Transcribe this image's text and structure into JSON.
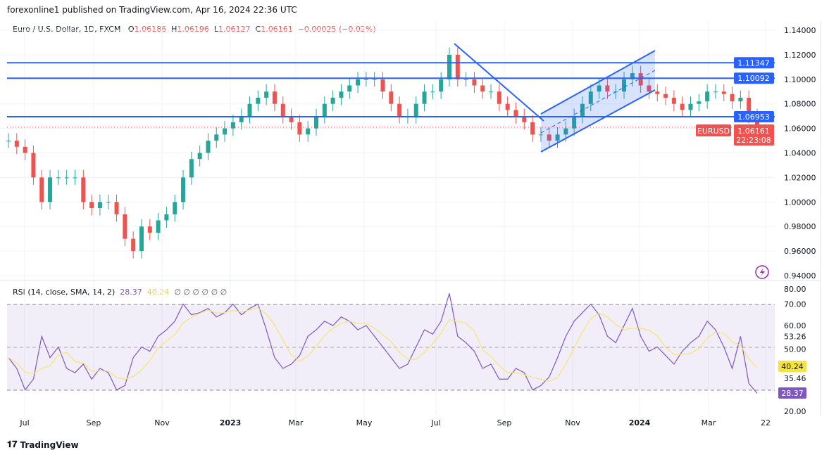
{
  "header": "forexonline1 published on TradingView.com, Apr 16, 2024 22:36 UTC",
  "legend": {
    "symbol": "Euro / U.S. Dollar, 1D, FXCM",
    "o_label": "O",
    "o": "1.06186",
    "h_label": "H",
    "h": "1.06196",
    "l_label": "L",
    "l": "1.06127",
    "c_label": "C",
    "c": "1.06161",
    "change": "−0.00025 (−0.02%)"
  },
  "rsi_legend": {
    "title": "RSI (14, close, SMA, 14, 2)",
    "rsi": "28.37",
    "sma": "40.24",
    "empty": "∅ ∅ ∅ ∅ ∅ ∅"
  },
  "branding": "TradingView",
  "colors": {
    "up": "#26a69a",
    "down": "#ef5350",
    "level": "#2962ff",
    "rsi": "#7e57c2",
    "sma": "#f7e470"
  },
  "chart_data": {
    "type": "candlestick",
    "title": "Euro / U.S. Dollar, 1D, FXCM",
    "ylim": [
      0.94,
      1.14
    ],
    "price_ticks": [
      "1.14000",
      "1.12000",
      "1.10000",
      "1.08000",
      "1.06000",
      "1.04000",
      "1.02000",
      "1.00000",
      "0.98000",
      "0.96000",
      "0.94000"
    ],
    "time_ticks": [
      "Jul",
      "Sep",
      "Nov",
      "2023",
      "Mar",
      "May",
      "Jul",
      "Sep",
      "Nov",
      "2024",
      "Mar",
      "22"
    ],
    "closes": [
      1.05,
      1.045,
      1.04,
      1.02,
      1.0,
      1.02,
      1.02,
      1.02,
      1.02,
      1.0,
      0.995,
      1.0,
      1.0,
      0.99,
      0.97,
      0.96,
      0.98,
      0.975,
      0.985,
      0.99,
      1.0,
      1.02,
      1.035,
      1.04,
      1.05,
      1.055,
      1.06,
      1.065,
      1.07,
      1.08,
      1.085,
      1.09,
      1.08,
      1.07,
      1.065,
      1.055,
      1.06,
      1.07,
      1.08,
      1.085,
      1.09,
      1.095,
      1.1,
      1.1,
      1.1,
      1.09,
      1.08,
      1.07,
      1.07,
      1.08,
      1.09,
      1.09,
      1.1,
      1.12,
      1.1,
      1.1,
      1.095,
      1.09,
      1.09,
      1.08,
      1.075,
      1.07,
      1.065,
      1.055,
      1.055,
      1.05,
      1.055,
      1.06,
      1.07,
      1.08,
      1.09,
      1.095,
      1.09,
      1.09,
      1.1,
      1.105,
      1.095,
      1.09,
      1.088,
      1.085,
      1.08,
      1.075,
      1.08,
      1.082,
      1.09,
      1.09,
      1.088,
      1.082,
      1.085,
      1.07,
      1.0616
    ],
    "levels": [
      {
        "label": "1.11347",
        "value": 1.11347
      },
      {
        "label": "1.10092",
        "value": 1.10092
      },
      {
        "label": "1.06953",
        "value": 1.06953
      }
    ],
    "last_price": {
      "symbol": "EURUSD",
      "price": "1.06161",
      "countdown": "22:23:08"
    },
    "rsi": {
      "ylim": [
        20,
        80
      ],
      "ticks": [
        "80.00",
        "70.00",
        "60.00",
        "53.26",
        "50.00",
        "35.46",
        "20.00"
      ],
      "bands": [
        30,
        70
      ],
      "values": [
        45,
        40,
        30,
        35,
        55,
        45,
        50,
        40,
        38,
        42,
        35,
        40,
        38,
        30,
        32,
        45,
        50,
        48,
        55,
        58,
        62,
        70,
        65,
        66,
        68,
        64,
        66,
        70,
        65,
        68,
        70,
        58,
        45,
        40,
        42,
        46,
        55,
        58,
        62,
        60,
        64,
        62,
        58,
        60,
        55,
        50,
        45,
        40,
        42,
        50,
        58,
        56,
        62,
        75,
        55,
        52,
        48,
        40,
        42,
        35,
        35,
        40,
        38,
        30,
        32,
        36,
        45,
        55,
        62,
        66,
        70,
        65,
        55,
        52,
        60,
        68,
        55,
        48,
        50,
        46,
        42,
        48,
        52,
        55,
        62,
        58,
        50,
        40,
        55,
        33,
        28.37
      ],
      "sma_label": "40.24",
      "rsi_label": "28.37"
    }
  }
}
